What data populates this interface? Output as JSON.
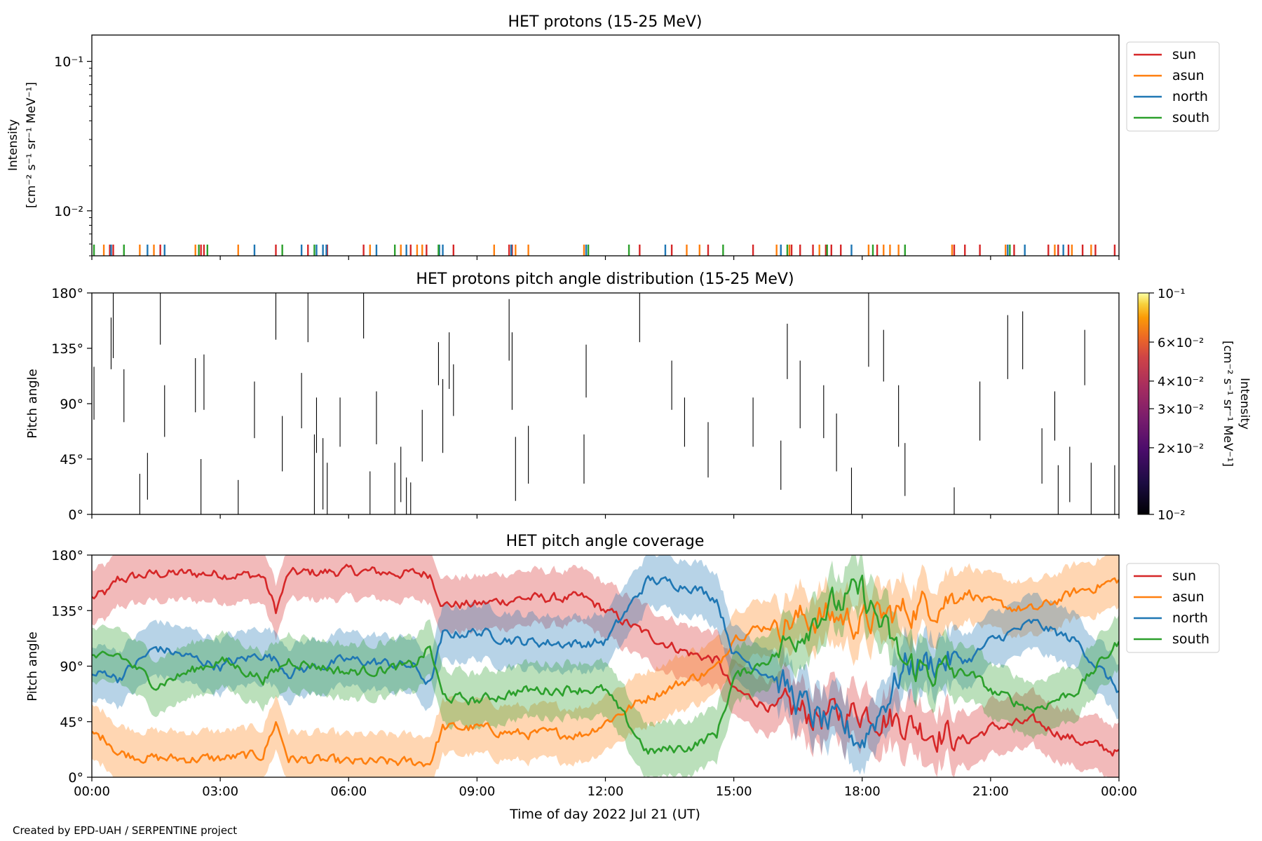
{
  "credit": "Created by EPD-UAH / SERPENTINE project",
  "legend": {
    "sun": "sun",
    "asun": "asun",
    "north": "north",
    "south": "south"
  },
  "colors": {
    "sun": "#d62728",
    "asun": "#ff7f0e",
    "north": "#1f77b4",
    "south": "#2ca02c"
  },
  "chart_data": [
    {
      "type": "line",
      "title": "HET protons (15-25 MeV)",
      "ylabel_line1": "Intensity",
      "ylabel_line2": "[cm⁻² s⁻¹ sr⁻¹ MeV⁻¹]",
      "yscale": "log",
      "ylim": [
        0.005,
        0.15
      ],
      "yticks": [
        "10⁻¹",
        "10⁻²"
      ],
      "ytick_values": [
        0.1,
        0.01
      ],
      "xlim_hours": [
        0,
        24
      ],
      "legend_placement": "outside upper right",
      "series": [
        {
          "name": "sun",
          "spike_hours": [
            0.42,
            0.5,
            1.6,
            2.55,
            2.62,
            4.3,
            5.05,
            5.5,
            6.35,
            7.45,
            7.82,
            8.45,
            9.75,
            9.82,
            12.8,
            13.55,
            14.4,
            15.45,
            16.35,
            16.55,
            16.85,
            17.15,
            17.28,
            17.5,
            18.35,
            20.15,
            20.4,
            20.75,
            21.55,
            22.35,
            22.58,
            22.82,
            23.15,
            23.45,
            23.9
          ]
        },
        {
          "name": "asun",
          "spike_hours": [
            0.28,
            1.12,
            1.45,
            2.42,
            3.42,
            6.5,
            7.22,
            7.6,
            7.72,
            9.4,
            9.9,
            10.2,
            11.5,
            13.9,
            14.2,
            16.0,
            16.3,
            17.0,
            18.15,
            18.5,
            18.65,
            18.85,
            20.1,
            21.35,
            22.5,
            22.9,
            23.35
          ]
        },
        {
          "name": "north",
          "spike_hours": [
            0.45,
            1.3,
            1.7,
            3.8,
            4.9,
            5.25,
            5.4,
            5.48,
            6.65,
            7.35,
            8.12,
            8.2,
            9.8,
            11.55,
            13.4,
            16.1,
            17.75,
            21.4,
            21.8,
            22.7
          ]
        },
        {
          "name": "south",
          "spike_hours": [
            0.05,
            0.75,
            2.5,
            2.7,
            4.45,
            5.2,
            7.08,
            8.1,
            11.6,
            12.55,
            14.75,
            16.25,
            17.18,
            18.25,
            19.0,
            21.45
          ]
        }
      ]
    },
    {
      "type": "heatmap",
      "title": "HET protons pitch angle distribution (15-25 MeV)",
      "ylabel": "Pitch angle",
      "ylim": [
        0,
        180
      ],
      "yticks": [
        "0°",
        "45°",
        "90°",
        "135°",
        "180°"
      ],
      "ytick_values": [
        0,
        45,
        90,
        135,
        180
      ],
      "xlim_hours": [
        0,
        24
      ],
      "colorbar": {
        "label_line1": "Intensity",
        "label_line2": "[cm⁻² s⁻¹ sr⁻¹ MeV⁻¹]",
        "scale": "log",
        "lim": [
          0.01,
          0.1
        ],
        "ticks": [
          {
            "value": 0.1,
            "label": "10⁻¹"
          },
          {
            "value": 0.06,
            "label": "6×10⁻²"
          },
          {
            "value": 0.04,
            "label": "4×10⁻²"
          },
          {
            "value": 0.03,
            "label": "3×10⁻²"
          },
          {
            "value": 0.02,
            "label": "2×10⁻²"
          },
          {
            "value": 0.01,
            "label": "10⁻²"
          }
        ]
      },
      "segments": [
        [
          0.05,
          77,
          120
        ],
        [
          0.45,
          118,
          160
        ],
        [
          0.5,
          127,
          180
        ],
        [
          0.75,
          75,
          118
        ],
        [
          1.12,
          0,
          33
        ],
        [
          1.3,
          12,
          50
        ],
        [
          1.6,
          138,
          180
        ],
        [
          1.7,
          63,
          105
        ],
        [
          2.42,
          83,
          127
        ],
        [
          2.55,
          0,
          45
        ],
        [
          2.62,
          85,
          130
        ],
        [
          3.42,
          0,
          28
        ],
        [
          3.8,
          62,
          108
        ],
        [
          4.3,
          142,
          180
        ],
        [
          4.45,
          35,
          80
        ],
        [
          4.9,
          70,
          115
        ],
        [
          5.05,
          140,
          180
        ],
        [
          5.2,
          0,
          65
        ],
        [
          5.25,
          50,
          95
        ],
        [
          5.4,
          4,
          62
        ],
        [
          5.5,
          0,
          42
        ],
        [
          5.8,
          55,
          95
        ],
        [
          6.35,
          143,
          180
        ],
        [
          6.5,
          0,
          35
        ],
        [
          6.65,
          57,
          100
        ],
        [
          7.08,
          0,
          42
        ],
        [
          7.22,
          10,
          55
        ],
        [
          7.35,
          0,
          30
        ],
        [
          7.45,
          0,
          26
        ],
        [
          7.72,
          43,
          85
        ],
        [
          8.1,
          105,
          140
        ],
        [
          8.2,
          50,
          110
        ],
        [
          8.35,
          102,
          148
        ],
        [
          8.45,
          80,
          122
        ],
        [
          9.75,
          125,
          175
        ],
        [
          9.82,
          85,
          148
        ],
        [
          9.9,
          11,
          63
        ],
        [
          10.2,
          25,
          72
        ],
        [
          11.5,
          25,
          65
        ],
        [
          11.55,
          95,
          138
        ],
        [
          12.8,
          140,
          180
        ],
        [
          13.55,
          85,
          125
        ],
        [
          13.85,
          55,
          95
        ],
        [
          14.4,
          30,
          75
        ],
        [
          15.45,
          55,
          95
        ],
        [
          16.1,
          20,
          60
        ],
        [
          16.25,
          110,
          155
        ],
        [
          16.55,
          70,
          125
        ],
        [
          17.1,
          62,
          105
        ],
        [
          17.4,
          35,
          82
        ],
        [
          17.75,
          0,
          38
        ],
        [
          18.15,
          120,
          180
        ],
        [
          18.5,
          108,
          150
        ],
        [
          18.85,
          55,
          105
        ],
        [
          19.0,
          15,
          58
        ],
        [
          20.15,
          0,
          22
        ],
        [
          20.75,
          60,
          108
        ],
        [
          21.4,
          110,
          162
        ],
        [
          21.75,
          118,
          165
        ],
        [
          22.2,
          25,
          70
        ],
        [
          22.5,
          60,
          100
        ],
        [
          22.58,
          0,
          40
        ],
        [
          22.85,
          10,
          55
        ],
        [
          23.2,
          105,
          150
        ],
        [
          23.35,
          0,
          42
        ],
        [
          23.9,
          0,
          40
        ]
      ]
    },
    {
      "type": "line",
      "title": "HET pitch angle coverage",
      "ylabel": "Pitch angle",
      "xlabel": "Time of day 2022 Jul 21 (UT)",
      "ylim": [
        0,
        180
      ],
      "yticks": [
        "0°",
        "45°",
        "90°",
        "135°",
        "180°"
      ],
      "ytick_values": [
        0,
        45,
        90,
        135,
        180
      ],
      "xticks": [
        "00:00",
        "03:00",
        "06:00",
        "09:00",
        "12:00",
        "15:00",
        "18:00",
        "21:00",
        "00:00"
      ],
      "xtick_hours": [
        0,
        3,
        6,
        9,
        12,
        15,
        18,
        21,
        24
      ],
      "band_halfwidth_deg": 22,
      "legend_placement": "outside upper right",
      "series": [
        {
          "name": "sun",
          "keyframes": [
            [
              0,
              145
            ],
            [
              0.4,
              150
            ],
            [
              0.6,
              160
            ],
            [
              1.5,
              165
            ],
            [
              3,
              165
            ],
            [
              4,
              163
            ],
            [
              4.3,
              135
            ],
            [
              4.6,
              165
            ],
            [
              6,
              167
            ],
            [
              7.5,
              165
            ],
            [
              7.9,
              165
            ],
            [
              8.2,
              140
            ],
            [
              9,
              140
            ],
            [
              10,
              145
            ],
            [
              11.5,
              145
            ],
            [
              12,
              135
            ],
            [
              13,
              115
            ],
            [
              14,
              100
            ],
            [
              14.6,
              95
            ],
            [
              15,
              70
            ],
            [
              16,
              55
            ],
            [
              17,
              50
            ],
            [
              17.5,
              50
            ],
            [
              18,
              55
            ],
            [
              19,
              45
            ],
            [
              20,
              35
            ],
            [
              20.5,
              30
            ],
            [
              21,
              40
            ],
            [
              22,
              45
            ],
            [
              23,
              30
            ],
            [
              24,
              20
            ]
          ]
        },
        {
          "name": "asun",
          "keyframes": [
            [
              0,
              35
            ],
            [
              0.4,
              30
            ],
            [
              0.6,
              20
            ],
            [
              1.5,
              15
            ],
            [
              3,
              15
            ],
            [
              4,
              18
            ],
            [
              4.3,
              45
            ],
            [
              4.6,
              15
            ],
            [
              6,
              12
            ],
            [
              7.5,
              12
            ],
            [
              7.9,
              12
            ],
            [
              8.2,
              40
            ],
            [
              9,
              40
            ],
            [
              10,
              35
            ],
            [
              11.5,
              35
            ],
            [
              12,
              45
            ],
            [
              13,
              65
            ],
            [
              14,
              80
            ],
            [
              14.6,
              88
            ],
            [
              15,
              115
            ],
            [
              16,
              125
            ],
            [
              17,
              130
            ],
            [
              17.5,
              130
            ],
            [
              18,
              125
            ],
            [
              19,
              135
            ],
            [
              20,
              145
            ],
            [
              20.5,
              150
            ],
            [
              21,
              140
            ],
            [
              22,
              135
            ],
            [
              23,
              150
            ],
            [
              24,
              160
            ]
          ]
        },
        {
          "name": "north",
          "keyframes": [
            [
              0,
              82
            ],
            [
              0.4,
              85
            ],
            [
              0.6,
              80
            ],
            [
              1.5,
              105
            ],
            [
              3,
              90
            ],
            [
              4,
              100
            ],
            [
              4.3,
              95
            ],
            [
              4.6,
              85
            ],
            [
              6,
              95
            ],
            [
              7.5,
              90
            ],
            [
              7.9,
              75
            ],
            [
              8.2,
              115
            ],
            [
              9,
              118
            ],
            [
              10,
              110
            ],
            [
              11.5,
              108
            ],
            [
              12,
              110
            ],
            [
              13,
              160
            ],
            [
              14,
              155
            ],
            [
              14.6,
              145
            ],
            [
              15,
              100
            ],
            [
              16,
              80
            ],
            [
              17,
              45
            ],
            [
              17.5,
              40
            ],
            [
              18,
              30
            ],
            [
              19,
              90
            ],
            [
              20,
              95
            ],
            [
              20.5,
              95
            ],
            [
              21,
              110
            ],
            [
              22,
              125
            ],
            [
              23,
              110
            ],
            [
              24,
              70
            ]
          ]
        },
        {
          "name": "south",
          "keyframes": [
            [
              0,
              98
            ],
            [
              0.4,
              95
            ],
            [
              0.6,
              100
            ],
            [
              1.5,
              75
            ],
            [
              3,
              95
            ],
            [
              4,
              80
            ],
            [
              4.3,
              85
            ],
            [
              4.6,
              95
            ],
            [
              6,
              85
            ],
            [
              7.5,
              90
            ],
            [
              7.9,
              105
            ],
            [
              8.2,
              65
            ],
            [
              9,
              62
            ],
            [
              10,
              70
            ],
            [
              11.5,
              72
            ],
            [
              12,
              70
            ],
            [
              13,
              20
            ],
            [
              14,
              25
            ],
            [
              14.6,
              35
            ],
            [
              15,
              80
            ],
            [
              16,
              100
            ],
            [
              17,
              135
            ],
            [
              17.5,
              140
            ],
            [
              18,
              150
            ],
            [
              19,
              90
            ],
            [
              20,
              85
            ],
            [
              20.5,
              85
            ],
            [
              21,
              70
            ],
            [
              22,
              55
            ],
            [
              23,
              70
            ],
            [
              24,
              110
            ]
          ]
        }
      ]
    }
  ]
}
